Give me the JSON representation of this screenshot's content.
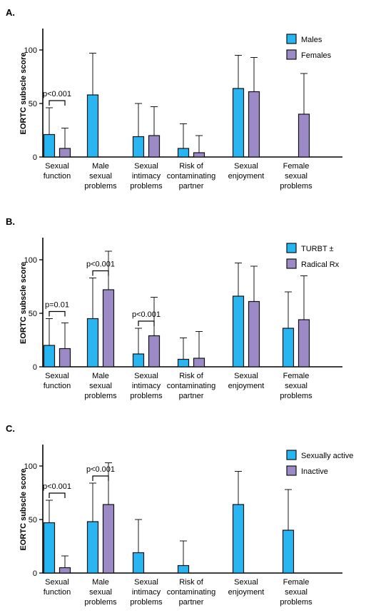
{
  "figure": {
    "colors": {
      "series_a": "#28b6f3",
      "series_b": "#9c8ac6",
      "bar_stroke": "#111111"
    }
  },
  "chart_data": [
    {
      "panel_label": "A.",
      "type": "bar",
      "ylabel": "EORTC subscle score",
      "ylim": [
        0,
        120
      ],
      "yticks": [
        0,
        50,
        100
      ],
      "legend_position": "top-right",
      "categories": [
        [
          "Sexual",
          "function"
        ],
        [
          "Male",
          "sexual",
          "problems"
        ],
        [
          "Sexual",
          "intimacy",
          "problems"
        ],
        [
          "Risk of",
          "contaminating",
          "partner"
        ],
        [
          "Sexual",
          "enjoyment"
        ],
        [
          "Female",
          "sexual",
          "problems"
        ]
      ],
      "series": [
        {
          "name": "Males",
          "values": [
            21,
            58,
            19,
            8,
            64,
            null
          ],
          "errors": [
            25,
            39,
            31,
            23,
            31,
            null
          ]
        },
        {
          "name": "Females",
          "values": [
            8,
            null,
            20,
            4,
            61,
            40
          ],
          "errors": [
            19,
            null,
            27,
            16,
            32,
            38
          ]
        }
      ],
      "annotations": [
        {
          "text": "p<0.001",
          "category_index": 0
        }
      ]
    },
    {
      "panel_label": "B.",
      "type": "bar",
      "ylabel": "EORTC subscle score",
      "ylim": [
        0,
        120
      ],
      "yticks": [
        0,
        50,
        100
      ],
      "legend_position": "top-right",
      "categories": [
        [
          "Sexual",
          "function"
        ],
        [
          "Male",
          "sexual",
          "problems"
        ],
        [
          "Sexual",
          "intimacy",
          "problems"
        ],
        [
          "Risk of",
          "contaminating",
          "partner"
        ],
        [
          "Sexual",
          "enjoyment"
        ],
        [
          "Female",
          "sexual",
          "problems"
        ]
      ],
      "series": [
        {
          "name": "TURBT ±",
          "values": [
            20,
            45,
            12,
            7,
            66,
            36
          ],
          "errors": [
            25,
            38,
            24,
            20,
            31,
            34
          ]
        },
        {
          "name": "Radical Rx",
          "values": [
            17,
            72,
            29,
            8,
            61,
            44
          ],
          "errors": [
            24,
            36,
            36,
            25,
            33,
            41
          ]
        }
      ],
      "annotations": [
        {
          "text": "p=0.01",
          "category_index": 0
        },
        {
          "text": "p<0.001",
          "category_index": 1
        },
        {
          "text": "p<0.001",
          "category_index": 2
        }
      ]
    },
    {
      "panel_label": "C.",
      "type": "bar",
      "ylabel": "EORTC subscle score",
      "ylim": [
        0,
        120
      ],
      "yticks": [
        0,
        50,
        100
      ],
      "legend_position": "top-right",
      "categories": [
        [
          "Sexual",
          "function"
        ],
        [
          "Male",
          "sexual",
          "problems"
        ],
        [
          "Sexual",
          "intimacy",
          "problems"
        ],
        [
          "Risk of",
          "contaminating",
          "partner"
        ],
        [
          "Sexual",
          "enjoyment"
        ],
        [
          "Female",
          "sexual",
          "problems"
        ]
      ],
      "series": [
        {
          "name": "Sexually active",
          "values": [
            47,
            48,
            19,
            7,
            64,
            40
          ],
          "errors": [
            21,
            36,
            31,
            23,
            31,
            38
          ]
        },
        {
          "name": "Inactive",
          "values": [
            5,
            64,
            null,
            null,
            null,
            null
          ],
          "errors": [
            11,
            39,
            null,
            null,
            null,
            null
          ]
        }
      ],
      "annotations": [
        {
          "text": "p<0.001",
          "category_index": 0
        },
        {
          "text": "p<0.001",
          "category_index": 1
        }
      ]
    }
  ]
}
